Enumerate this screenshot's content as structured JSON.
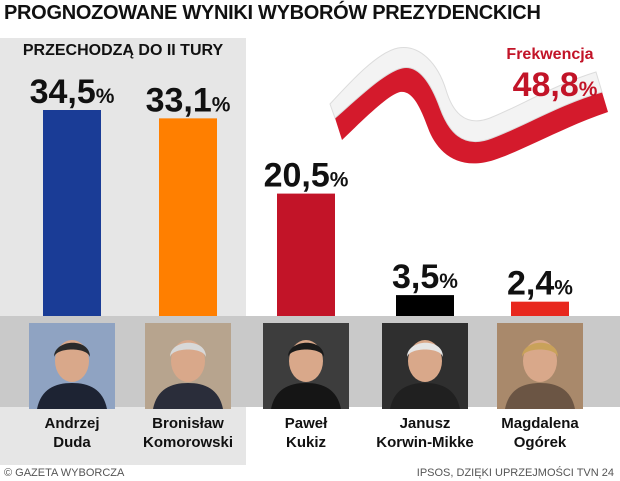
{
  "header": {
    "title": "PROGNOZOWANE WYNIKI WYBORÓW PREZYDENCKICH"
  },
  "runoff": {
    "label": "PRZECHODZĄ DO II TURY"
  },
  "turnout": {
    "label": "Frekwencja",
    "value": "48,8",
    "unit": "%"
  },
  "credits": {
    "left": "© GAZETA WYBORCZA",
    "right": "IPSOS, DZIĘKI UPRZEJMOŚCI TVN 24"
  },
  "chart_data": {
    "type": "bar",
    "title": "PROGNOZOWANE WYNIKI WYBORÓW PREZYDENCKICH",
    "unit": "%",
    "categories": [
      "Andrzej Duda",
      "Bronisław Komorowski",
      "Paweł Kukiz",
      "Janusz Korwin-Mikke",
      "Magdalena Ogórek"
    ],
    "values": [
      34.5,
      33.1,
      20.5,
      3.5,
      2.4
    ],
    "labels": [
      "34,5",
      "33,1",
      "20,5",
      "3,5",
      "2,4"
    ],
    "colors": [
      "#1a3c96",
      "#ff7f00",
      "#c21428",
      "#000000",
      "#e8281e"
    ],
    "ylim": [
      0,
      34.5
    ],
    "grid": false,
    "legend": "none"
  },
  "candidates": [
    {
      "first": "Andrzej",
      "last": "Duda"
    },
    {
      "first": "Bronisław",
      "last": "Komorowski"
    },
    {
      "first": "Paweł",
      "last": "Kukiz"
    },
    {
      "first": "Janusz",
      "last": "Korwin-Mikke"
    },
    {
      "first": "Magdalena",
      "last": "Ogórek"
    }
  ]
}
